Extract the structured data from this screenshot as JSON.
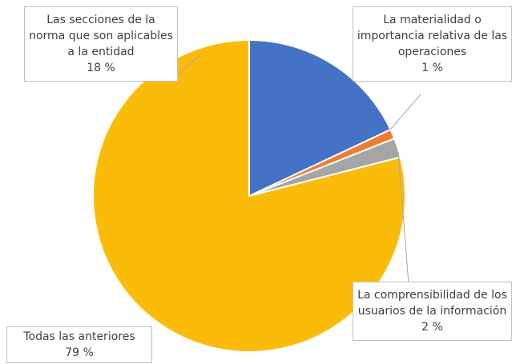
{
  "chart_data": {
    "type": "pie",
    "categories": [
      "Las secciones de la norma que son aplicables a la entidad",
      "La materialidad o importancia relativa de las operaciones",
      "La comprensibilidad de los usuarios de la información",
      "Todas las anteriores"
    ],
    "values": [
      18,
      1,
      2,
      79
    ],
    "value_labels": [
      "18 %",
      "1 %",
      "2 %",
      "79 %"
    ],
    "colors": [
      "#4472c4",
      "#ed7d31",
      "#a5a5a5",
      "#fbbc09"
    ]
  }
}
